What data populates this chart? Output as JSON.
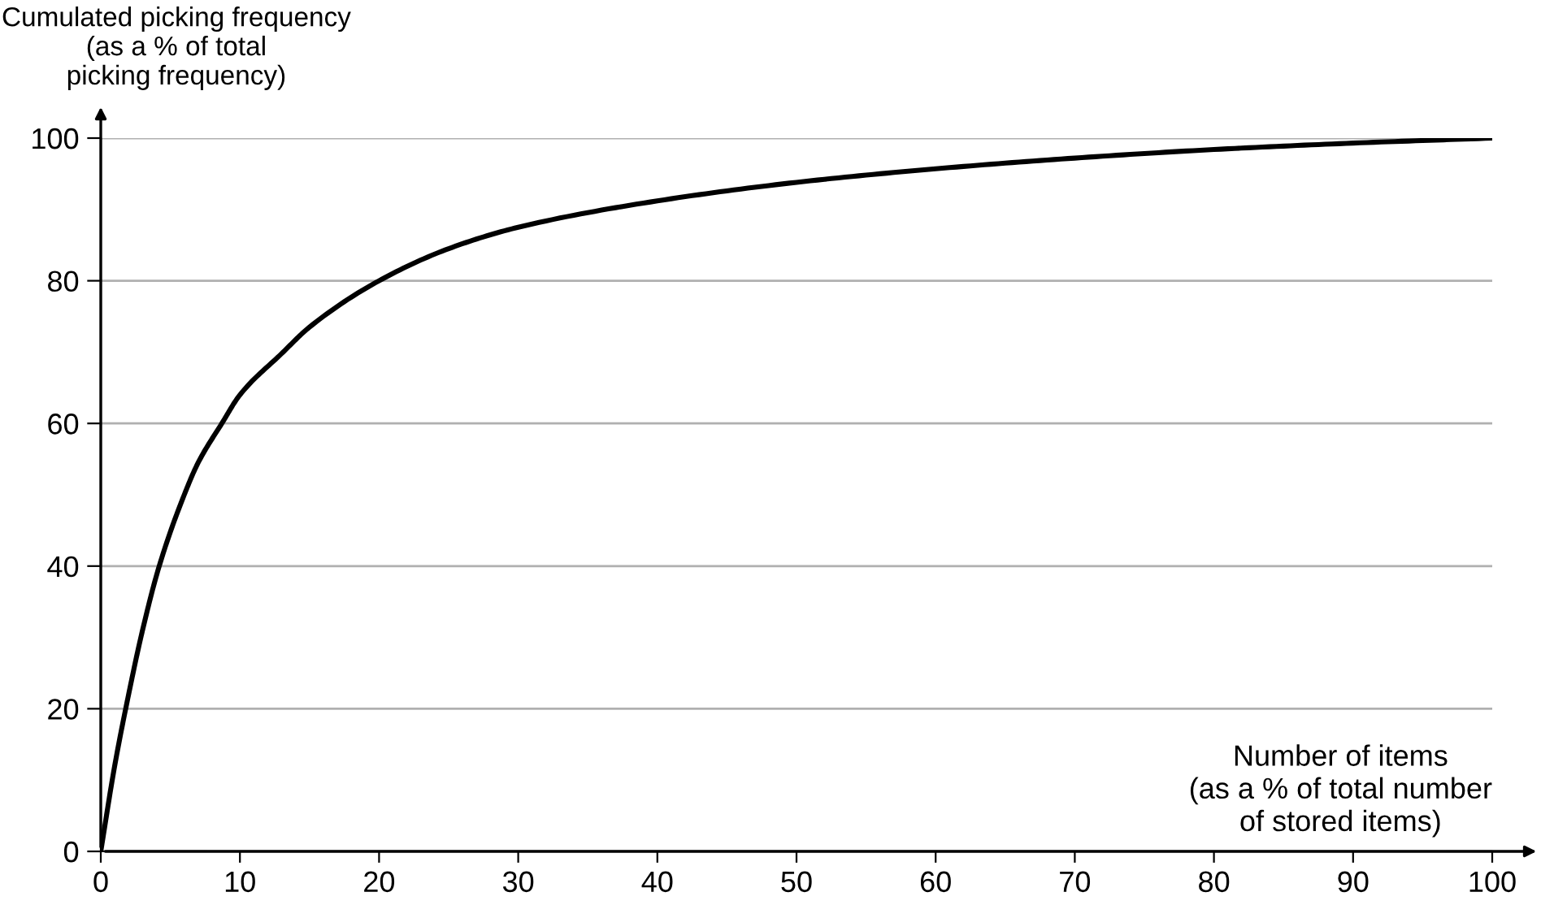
{
  "chart_data": {
    "type": "line",
    "ylabel": "Cumulated picking frequency\n(as a % of total\npicking frequency)",
    "xlabel": "Number of items\n(as a % of total number\nof stored items)",
    "series": [
      {
        "color": "#000000",
        "x": [
          0,
          1,
          2,
          3,
          4.2,
          6,
          7,
          8.7,
          10,
          13,
          15,
          20,
          25,
          30,
          40,
          50,
          60,
          70,
          80,
          90,
          100
        ],
        "values": [
          0,
          12,
          22,
          31,
          40,
          50,
          54.5,
          60,
          64,
          69.8,
          73.5,
          80,
          84.5,
          87.5,
          91.2,
          93.8,
          95.7,
          97.2,
          98.4,
          99.3,
          100
        ]
      }
    ],
    "xlim": [
      0,
      100
    ],
    "ylim": [
      0,
      100
    ],
    "xticks": [
      0,
      10,
      20,
      30,
      40,
      50,
      60,
      70,
      80,
      90,
      100
    ],
    "yticks": [
      0,
      20,
      40,
      60,
      80,
      100
    ],
    "grid": "y",
    "marker": "none",
    "line_style": "solid"
  }
}
